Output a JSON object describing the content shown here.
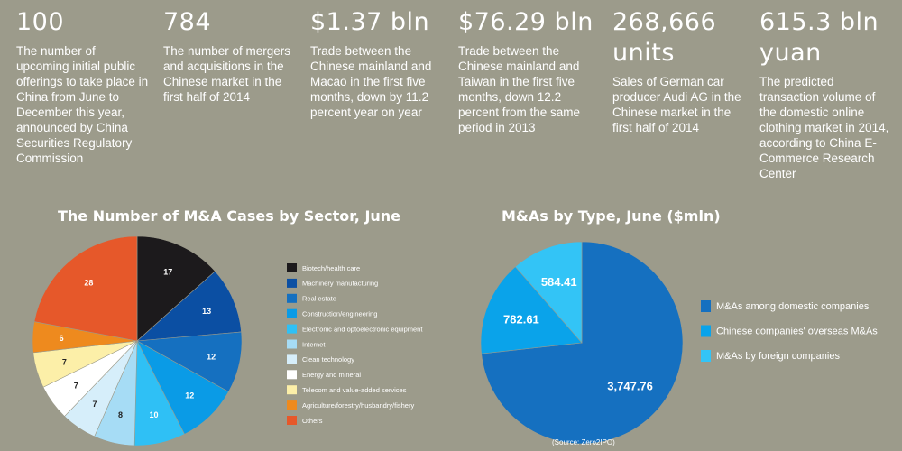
{
  "stats": [
    {
      "value": "100",
      "desc": "The number of upcoming initial public offerings to take place in China from June to December this year, announced by China Securities Regulatory Commission"
    },
    {
      "value": "784",
      "desc": "The number of mergers and acquisitions in the Chinese market in the first half of 2014"
    },
    {
      "value": "$1.37 bln",
      "desc": "Trade between the Chinese mainland and Macao in the first five months, down by 11.2 percent year on year"
    },
    {
      "value": "$76.29 bln",
      "desc": "Trade between the Chinese mainland and Taiwan in the first five months, down 12.2 percent from the same period in 2013"
    },
    {
      "value": "268,666 units",
      "desc": "Sales of German car producer Audi AG in the Chinese market in the first half of 2014"
    },
    {
      "value": "615.3 bln yuan",
      "desc": "The predicted transaction volume of the domestic online clothing market in 2014, according to China E-Commerce Research Center"
    }
  ],
  "source": "(Source: Zero2IPO)",
  "chart_data": [
    {
      "type": "pie",
      "title": "The Number of M&A Cases by Sector, June",
      "categories": [
        "Biotech/health care",
        "Machinery manufacturing",
        "Real estate",
        "Construction/engineering",
        "Electronic and optoelectronic equipment",
        "Internet",
        "Clean technology",
        "Energy and mineral",
        "Telecom and value-added services",
        "Agriculture/forestry/husbandry/fishery",
        "Others"
      ],
      "values": [
        17,
        13,
        12,
        12,
        10,
        8,
        7,
        7,
        7,
        6,
        28
      ],
      "colors": [
        "#1c1a1c",
        "#0b4fa3",
        "#1570c0",
        "#0a9be6",
        "#2fc0f5",
        "#a6dcf5",
        "#d6eefa",
        "#ffffff",
        "#fcefa8",
        "#ee8a1e",
        "#e6582a"
      ],
      "label_colors": [
        "#ffffff",
        "#ffffff",
        "#ffffff",
        "#ffffff",
        "#ffffff",
        "#222222",
        "#222222",
        "#222222",
        "#222222",
        "#ffffff",
        "#ffffff"
      ]
    },
    {
      "type": "pie",
      "title": "M&As by Type, June ($mln)",
      "categories": [
        "M&As among domestic companies",
        "Chinese companies' overseas M&As",
        "M&As by foreign companies"
      ],
      "values": [
        3747.76,
        782.61,
        584.41
      ],
      "value_labels": [
        "3,747.76",
        "782.61",
        "584.41"
      ],
      "colors": [
        "#1570c0",
        "#0aa3ea",
        "#33c4f6"
      ]
    }
  ]
}
